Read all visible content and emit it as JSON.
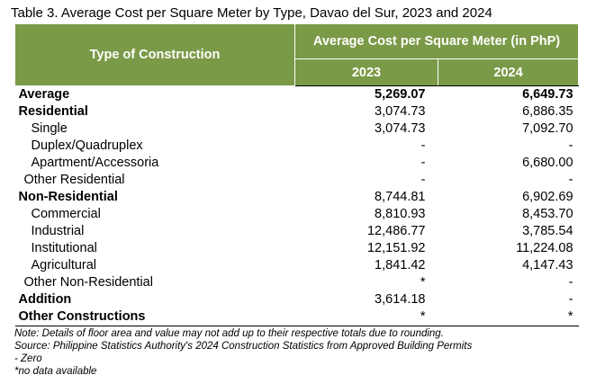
{
  "caption": "Table 3. Average Cost per Square Meter by Type, Davao del Sur, 2023 and 2024",
  "header": {
    "type_label": "Type of Construction",
    "group_label": "Average Cost per Square Meter (in PhP)",
    "year1": "2023",
    "year2": "2024"
  },
  "rows": [
    {
      "label": "Average",
      "v2023": "5,269.07",
      "v2024": "6,649.73"
    },
    {
      "label": "Residential",
      "v2023": "3,074.73",
      "v2024": "6,886.35"
    },
    {
      "label": "Single",
      "v2023": "3,074.73",
      "v2024": "7,092.70"
    },
    {
      "label": "Duplex/Quadruplex",
      "v2023": "-",
      "v2024": "-"
    },
    {
      "label": "Apartment/Accessoria",
      "v2023": "-",
      "v2024": "6,680.00"
    },
    {
      "label": "Other Residential",
      "v2023": "-",
      "v2024": "-"
    },
    {
      "label": "Non-Residential",
      "v2023": "8,744.81",
      "v2024": "6,902.69"
    },
    {
      "label": "Commercial",
      "v2023": "8,810.93",
      "v2024": "8,453.70"
    },
    {
      "label": "Industrial",
      "v2023": "12,486.77",
      "v2024": "3,785.54"
    },
    {
      "label": "Institutional",
      "v2023": "12,151.92",
      "v2024": "11,224.08"
    },
    {
      "label": "Agricultural",
      "v2023": "1,841.42",
      "v2024": "4,147.43"
    },
    {
      "label": "Other Non-Residential",
      "v2023": "*",
      "v2024": "-"
    },
    {
      "label": "Addition",
      "v2023": "3,614.18",
      "v2024": "-"
    },
    {
      "label": "Other Constructions",
      "v2023": "*",
      "v2024": "*"
    }
  ],
  "notes": {
    "note": "Note: Details of floor area and value may not add up to their respective totals due to rounding.",
    "source": "Source: Philippine Statistics Authority's 2024 Construction Statistics from Approved Building Permits",
    "zero": "- Zero",
    "nodata": "*no data available"
  },
  "colors": {
    "header_bg": "#7a9a47",
    "header_text": "#ffffff"
  }
}
